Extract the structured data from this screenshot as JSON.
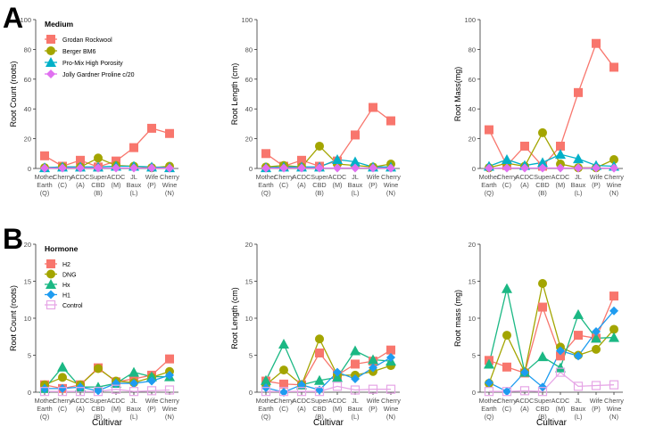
{
  "panel_labels": [
    "A",
    "B"
  ],
  "categories": [
    [
      "Mother",
      "Earth",
      "(Q)"
    ],
    [
      "Cherry",
      "(C)"
    ],
    [
      "ACDC",
      "(A)"
    ],
    [
      "Super",
      "CBD",
      "(B)"
    ],
    [
      "ACDC",
      "(M)"
    ],
    [
      "JL",
      "Baux",
      "(L)"
    ],
    [
      "Wife",
      "(P)"
    ],
    [
      "Cherry",
      "Wine",
      "(N)"
    ]
  ],
  "colors": {
    "red": "#F8766D",
    "olive": "#A3A500",
    "teal": "#00B0C8",
    "violet": "#E070F0",
    "green": "#1BB884",
    "blue": "#1E9CF0",
    "pink": "#E6A6E6"
  },
  "chart_data": [
    {
      "type": "line",
      "row": "A",
      "ylabel": "Root Count (roots)",
      "xlabel": "",
      "ylim": [
        0,
        100
      ],
      "yticks": [
        0,
        20,
        40,
        60,
        80,
        100
      ],
      "legend": {
        "title": "Medium",
        "placement": "top-left"
      },
      "series": [
        {
          "name": "Grodan Rockwool",
          "color": "#F8766D",
          "marker": "square",
          "values": [
            8.5,
            1.5,
            5.5,
            1,
            5,
            14,
            27,
            23.5
          ]
        },
        {
          "name": "Berger BM6",
          "color": "#A3A500",
          "marker": "circle",
          "values": [
            0.5,
            1,
            1,
            7,
            2,
            1.5,
            0.5,
            1.5
          ]
        },
        {
          "name": "Pro-Mix High Porosity",
          "color": "#00B0C8",
          "marker": "triangle",
          "values": [
            0.5,
            1,
            1,
            1,
            1.5,
            1.5,
            1,
            0.5
          ]
        },
        {
          "name": "Jolly Gardner Proline c/20",
          "color": "#E070F0",
          "marker": "diamond",
          "values": [
            0.2,
            0.3,
            0.3,
            0.3,
            0.3,
            0.3,
            0.3,
            0.2
          ]
        }
      ]
    },
    {
      "type": "line",
      "row": "A",
      "ylabel": "Root Length (cm)",
      "xlabel": "",
      "ylim": [
        0,
        100
      ],
      "yticks": [
        0,
        20,
        40,
        60,
        80,
        100
      ],
      "series": [
        {
          "name": "Grodan Rockwool",
          "color": "#F8766D",
          "marker": "square",
          "values": [
            10,
            1.5,
            5.5,
            1.5,
            5,
            22.5,
            41,
            32
          ]
        },
        {
          "name": "Berger BM6",
          "color": "#A3A500",
          "marker": "circle",
          "values": [
            1,
            2,
            1,
            15,
            3,
            2,
            1,
            3
          ]
        },
        {
          "name": "Pro-Mix High Porosity",
          "color": "#00B0C8",
          "marker": "triangle",
          "values": [
            0.5,
            1,
            1,
            1,
            6,
            4.5,
            1,
            1
          ]
        },
        {
          "name": "Jolly Gardner Proline c/20",
          "color": "#E070F0",
          "marker": "diamond",
          "values": [
            0.2,
            0.3,
            0.3,
            0.3,
            0.3,
            0.3,
            0.3,
            0.2
          ]
        }
      ]
    },
    {
      "type": "line",
      "row": "A",
      "ylabel": "Root Mass(mg)",
      "xlabel": "",
      "ylim": [
        0,
        100
      ],
      "yticks": [
        0,
        20,
        40,
        60,
        80,
        100
      ],
      "series": [
        {
          "name": "Grodan Rockwool",
          "color": "#F8766D",
          "marker": "square",
          "values": [
            26,
            2,
            15,
            1.5,
            15,
            51,
            84,
            68
          ]
        },
        {
          "name": "Berger BM6",
          "color": "#A3A500",
          "marker": "circle",
          "values": [
            0.5,
            3.5,
            1.5,
            24,
            3,
            0.5,
            0.5,
            6
          ]
        },
        {
          "name": "Pro-Mix High Porosity",
          "color": "#00B0C8",
          "marker": "triangle",
          "values": [
            1.5,
            6,
            2,
            4,
            9.5,
            6.5,
            2,
            1.5
          ]
        },
        {
          "name": "Jolly Gardner Proline c/20",
          "color": "#E070F0",
          "marker": "diamond",
          "values": [
            0.2,
            0.3,
            0.3,
            0.3,
            0.3,
            0.3,
            0.3,
            0.2
          ]
        }
      ]
    },
    {
      "type": "line",
      "row": "B",
      "ylabel": "Root Count (roots)",
      "xlabel": "Cultivar",
      "ylim": [
        0,
        20
      ],
      "yticks": [
        0,
        5,
        10,
        15,
        20
      ],
      "legend": {
        "title": "Hormone",
        "placement": "top-left"
      },
      "series": [
        {
          "name": "H2",
          "color": "#F8766D",
          "marker": "square",
          "values": [
            1,
            0.5,
            1,
            3.3,
            1.4,
            1.8,
            2.3,
            4.5
          ]
        },
        {
          "name": "DNG",
          "color": "#A3A500",
          "marker": "circle",
          "values": [
            1,
            2,
            1,
            3.2,
            1.5,
            1.3,
            2,
            2.8
          ]
        },
        {
          "name": "Hx",
          "color": "#1BB884",
          "marker": "triangle",
          "values": [
            0.5,
            3.4,
            0.7,
            0.7,
            1.2,
            2.7,
            2.1,
            2.1
          ]
        },
        {
          "name": "H1",
          "color": "#1E9CF0",
          "marker": "diamond",
          "values": [
            0.5,
            0.5,
            0.7,
            0.2,
            1.2,
            1.2,
            1.5,
            2.3
          ]
        },
        {
          "name": "Control",
          "color": "#E6A6E6",
          "marker": "open-square",
          "values": [
            0.1,
            0.1,
            0.1,
            0.1,
            0.4,
            0.1,
            0.2,
            0.3
          ]
        }
      ]
    },
    {
      "type": "line",
      "row": "B",
      "ylabel": "Root Length (cm)",
      "xlabel": "Cultivar",
      "ylim": [
        0,
        20
      ],
      "yticks": [
        0,
        5,
        10,
        15,
        20
      ],
      "series": [
        {
          "name": "H2",
          "color": "#F8766D",
          "marker": "square",
          "values": [
            1.5,
            1.1,
            1,
            5.3,
            2.3,
            3.8,
            4.2,
            5.7
          ]
        },
        {
          "name": "DNG",
          "color": "#A3A500",
          "marker": "circle",
          "values": [
            1,
            3,
            1,
            7.2,
            2.3,
            2.3,
            2.8,
            3.6
          ]
        },
        {
          "name": "Hx",
          "color": "#1BB884",
          "marker": "triangle",
          "values": [
            1.6,
            6.5,
            1,
            1.6,
            2,
            5.6,
            4.4,
            4.2
          ]
        },
        {
          "name": "H1",
          "color": "#1E9CF0",
          "marker": "diamond",
          "values": [
            0.6,
            0,
            1,
            0.3,
            2.7,
            1.8,
            3.3,
            4.7
          ]
        },
        {
          "name": "Control",
          "color": "#E6A6E6",
          "marker": "open-square",
          "values": [
            0.1,
            0.1,
            0.1,
            0.1,
            0.8,
            0.3,
            0.4,
            0.4
          ]
        }
      ]
    },
    {
      "type": "line",
      "row": "B",
      "ylabel": "Root mass (mg)",
      "xlabel": "Cultivar",
      "ylim": [
        0,
        20
      ],
      "yticks": [
        0,
        5,
        10,
        15,
        20
      ],
      "series": [
        {
          "name": "H2",
          "color": "#F8766D",
          "marker": "square",
          "values": [
            4.3,
            3.4,
            2.6,
            11.5,
            4.9,
            7.7,
            7.3,
            13
          ]
        },
        {
          "name": "DNG",
          "color": "#A3A500",
          "marker": "circle",
          "values": [
            1.2,
            7.7,
            2.7,
            14.7,
            6.1,
            5,
            5.8,
            8.5
          ]
        },
        {
          "name": "Hx",
          "color": "#1BB884",
          "marker": "triangle",
          "values": [
            3.8,
            14,
            2.7,
            4.8,
            3.3,
            10.5,
            7.3,
            7.4
          ]
        },
        {
          "name": "H1",
          "color": "#1E9CF0",
          "marker": "diamond",
          "values": [
            1.3,
            0.1,
            2.7,
            0.7,
            5.6,
            4.9,
            8.2,
            11
          ]
        },
        {
          "name": "Control",
          "color": "#E6A6E6",
          "marker": "open-square",
          "values": [
            0.1,
            0.1,
            0.2,
            0.1,
            2.7,
            0.8,
            0.9,
            1
          ]
        }
      ]
    }
  ]
}
